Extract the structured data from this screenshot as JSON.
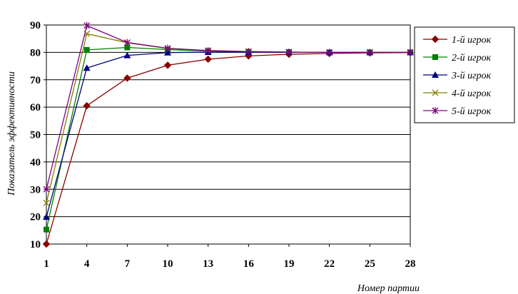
{
  "chart_data": {
    "type": "line",
    "title": "",
    "xlabel": "Номер партии",
    "ylabel": "Показатель эффективности",
    "x": [
      1,
      4,
      7,
      10,
      13,
      16,
      19,
      22,
      25,
      28
    ],
    "ylim": [
      10,
      90
    ],
    "yticks": [
      10,
      20,
      30,
      40,
      50,
      60,
      70,
      80,
      90
    ],
    "grid": "horizontal",
    "legend_position": "right",
    "series": [
      {
        "name": "1-й игрок",
        "color": "#8B0000",
        "marker": "diamond",
        "values": [
          10,
          60.5,
          70.6,
          75.3,
          77.5,
          78.7,
          79.3,
          79.6,
          79.8,
          79.9
        ]
      },
      {
        "name": "2-й игрок",
        "color": "#008000",
        "marker": "square",
        "values": [
          15.3,
          80.9,
          81.8,
          81,
          80.5,
          80.2,
          80.1,
          80,
          80,
          80
        ]
      },
      {
        "name": "3-й игрок",
        "color": "#000080",
        "marker": "triangle",
        "values": [
          19.9,
          74.3,
          78.9,
          79.9,
          80.1,
          80.1,
          80,
          80,
          80,
          80
        ]
      },
      {
        "name": "4-й игрок",
        "color": "#808000",
        "marker": "x",
        "values": [
          25,
          86.8,
          83.5,
          81.4,
          80.7,
          80.3,
          80.1,
          80,
          80,
          80
        ]
      },
      {
        "name": "5-й игрок",
        "color": "#800080",
        "marker": "asterisk",
        "values": [
          30,
          89.8,
          83.6,
          81.5,
          80.6,
          80.3,
          80.1,
          80,
          80,
          80
        ]
      }
    ]
  }
}
